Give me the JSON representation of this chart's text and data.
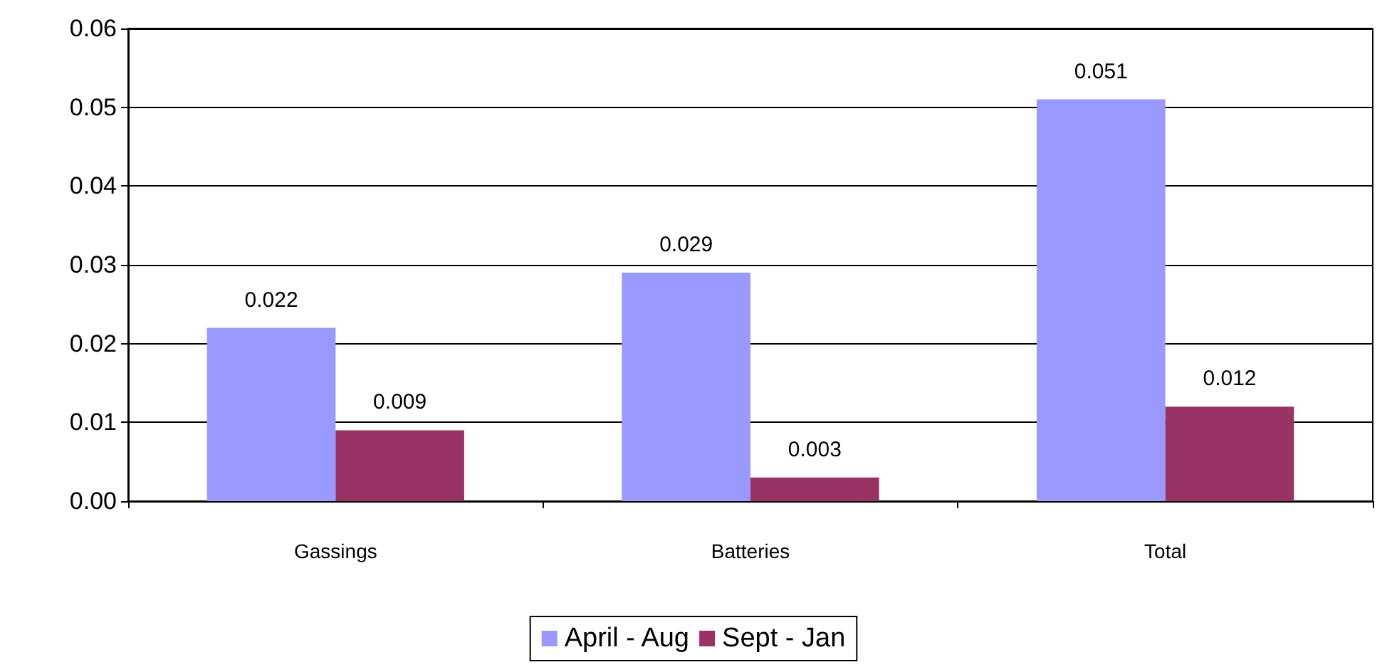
{
  "chart_data": {
    "type": "bar",
    "categories": [
      "Gassings",
      "Batteries",
      "Total"
    ],
    "series": [
      {
        "name": "April - Aug",
        "color": "#9999ff",
        "values": [
          0.022,
          0.029,
          0.051
        ]
      },
      {
        "name": "Sept - Jan",
        "color": "#993366",
        "values": [
          0.009,
          0.003,
          0.012
        ]
      }
    ],
    "ylim": [
      0,
      0.06
    ],
    "yticks": [
      {
        "value": 0,
        "label": "0.00"
      },
      0.01,
      0.02,
      0.03,
      0.04,
      0.05,
      0.06
    ],
    "grid": "y",
    "legend": "bottom",
    "data_labels": true
  }
}
